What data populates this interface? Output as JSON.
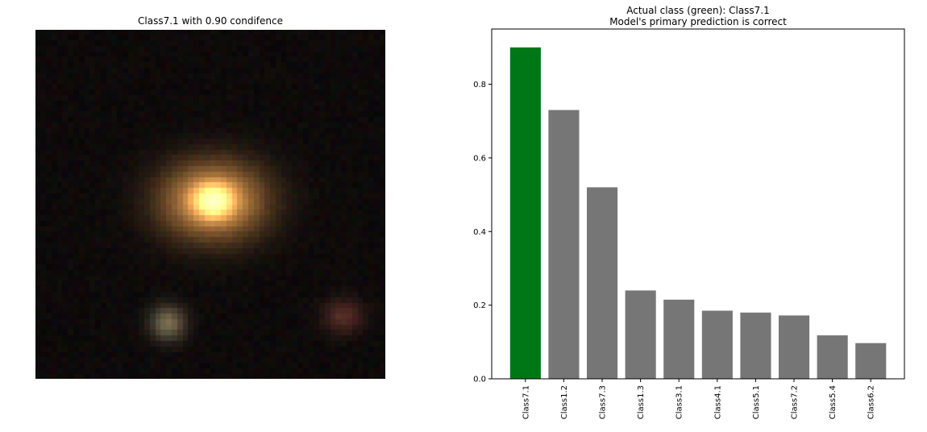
{
  "left_panel": {
    "title": "Class7.1 with 0.90 condifence"
  },
  "chart_data": {
    "type": "bar",
    "title_line1": "Actual class (green): Class7.1",
    "title_line2": "Model's primary prediction is correct",
    "categories": [
      "Class7.1",
      "Class1.2",
      "Class7.3",
      "Class1.3",
      "Class3.1",
      "Class4.1",
      "Class5.1",
      "Class7.2",
      "Class5.4",
      "Class6.2"
    ],
    "values": [
      0.9,
      0.73,
      0.52,
      0.24,
      0.215,
      0.185,
      0.18,
      0.172,
      0.118,
      0.097
    ],
    "bar_colors": [
      "#007716",
      "#767676",
      "#767676",
      "#767676",
      "#767676",
      "#767676",
      "#767676",
      "#767676",
      "#767676",
      "#767676"
    ],
    "ylim": [
      0,
      0.95
    ],
    "yticks": [
      0.0,
      0.2,
      0.4,
      0.6,
      0.8
    ],
    "ytick_labels": [
      "0.0",
      "0.2",
      "0.4",
      "0.6",
      "0.8"
    ],
    "xlabel": "",
    "ylabel": "",
    "grid": false,
    "legend": "none"
  }
}
